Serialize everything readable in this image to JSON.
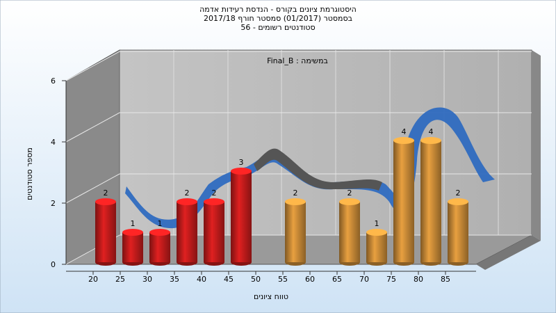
{
  "chart_data": {
    "type": "bar",
    "title": [
      "היסטוגרמת ציונים בקורס - הנדסת רעידות אדמה",
      "בסמסטר  (01/2017)  סמסטר חורף 2017/18",
      "סטודנטים רשומים - 56"
    ],
    "annotation": "Final_B : במשימה",
    "x_label": "טווח ציונים",
    "y_label": "מספר סטודנטים",
    "categories": [
      "20",
      "25",
      "30",
      "35",
      "40",
      "45",
      "50",
      "55",
      "60",
      "65",
      "70",
      "75",
      "80",
      "85"
    ],
    "values": [
      2,
      1,
      1,
      2,
      2,
      3,
      0,
      2,
      0,
      2,
      1,
      4,
      4,
      2
    ],
    "colors": [
      "#e02020",
      "#e02020",
      "#e02020",
      "#e02020",
      "#e02020",
      "#e02020",
      "#e02020",
      "#e8a040",
      "#e8a040",
      "#e8a040",
      "#e8a040",
      "#e8a040",
      "#e8a040",
      "#e8a040"
    ],
    "ylim": [
      0,
      6
    ],
    "yticks": [
      0,
      2,
      4,
      6
    ],
    "grid": true
  }
}
